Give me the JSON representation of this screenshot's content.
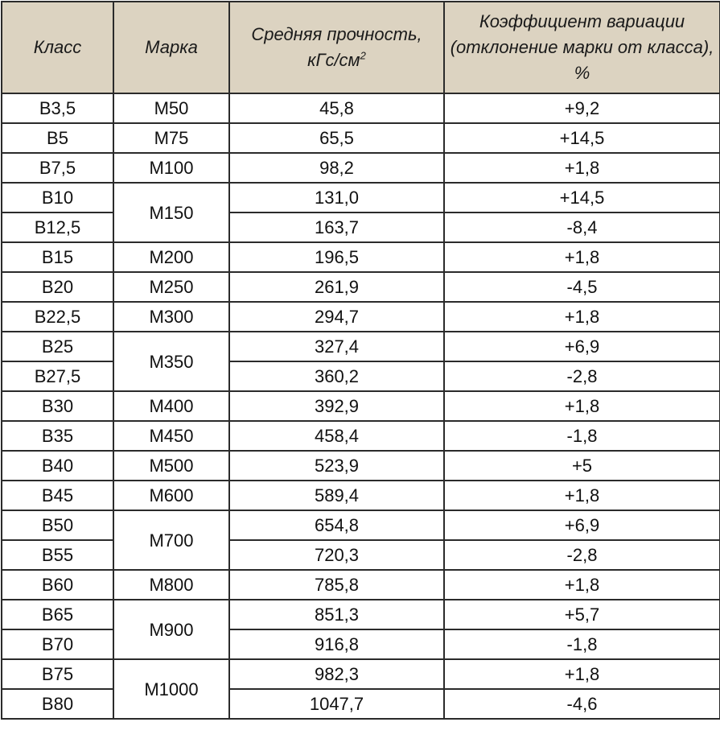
{
  "headers": {
    "klass": "Класс",
    "marka": "Марка",
    "strength_line1": "Средняя прочность,",
    "strength_line2": "кГс/см",
    "strength_sup": "2",
    "coef": "Коэффициент вариации (отклонение марки от класса), %"
  },
  "rows": [
    {
      "klass": "В3,5",
      "marka": "М50",
      "span": 1,
      "strength": "45,8",
      "coef": "+9,2"
    },
    {
      "klass": "В5",
      "marka": "М75",
      "span": 1,
      "strength": "65,5",
      "coef": "+14,5"
    },
    {
      "klass": "В7,5",
      "marka": "М100",
      "span": 1,
      "strength": "98,2",
      "coef": "+1,8"
    },
    {
      "klass": "В10",
      "marka": "М150",
      "span": 2,
      "strength": "131,0",
      "coef": "+14,5"
    },
    {
      "klass": "В12,5",
      "marka": null,
      "span": 0,
      "strength": "163,7",
      "coef": "-8,4"
    },
    {
      "klass": "В15",
      "marka": "М200",
      "span": 1,
      "strength": "196,5",
      "coef": "+1,8"
    },
    {
      "klass": "В20",
      "marka": "М250",
      "span": 1,
      "strength": "261,9",
      "coef": "-4,5"
    },
    {
      "klass": "В22,5",
      "marka": "М300",
      "span": 1,
      "strength": "294,7",
      "coef": "+1,8"
    },
    {
      "klass": "В25",
      "marka": "М350",
      "span": 2,
      "strength": "327,4",
      "coef": "+6,9"
    },
    {
      "klass": "В27,5",
      "marka": null,
      "span": 0,
      "strength": "360,2",
      "coef": "-2,8"
    },
    {
      "klass": "В30",
      "marka": "М400",
      "span": 1,
      "strength": "392,9",
      "coef": "+1,8"
    },
    {
      "klass": "В35",
      "marka": "М450",
      "span": 1,
      "strength": "458,4",
      "coef": "-1,8"
    },
    {
      "klass": "В40",
      "marka": "М500",
      "span": 1,
      "strength": "523,9",
      "coef": "+5"
    },
    {
      "klass": "В45",
      "marka": "М600",
      "span": 1,
      "strength": "589,4",
      "coef": "+1,8"
    },
    {
      "klass": "В50",
      "marka": "М700",
      "span": 2,
      "strength": "654,8",
      "coef": "+6,9"
    },
    {
      "klass": "В55",
      "marka": null,
      "span": 0,
      "strength": "720,3",
      "coef": "-2,8"
    },
    {
      "klass": "В60",
      "marka": "М800",
      "span": 1,
      "strength": "785,8",
      "coef": "+1,8"
    },
    {
      "klass": "В65",
      "marka": "М900",
      "span": 2,
      "strength": "851,3",
      "coef": "+5,7"
    },
    {
      "klass": "В70",
      "marka": null,
      "span": 0,
      "strength": "916,8",
      "coef": "-1,8"
    },
    {
      "klass": "В75",
      "marka": "М1000",
      "span": 2,
      "strength": "982,3",
      "coef": "+1,8"
    },
    {
      "klass": "В80",
      "marka": null,
      "span": 0,
      "strength": "1047,7",
      "coef": "-4,6"
    }
  ]
}
